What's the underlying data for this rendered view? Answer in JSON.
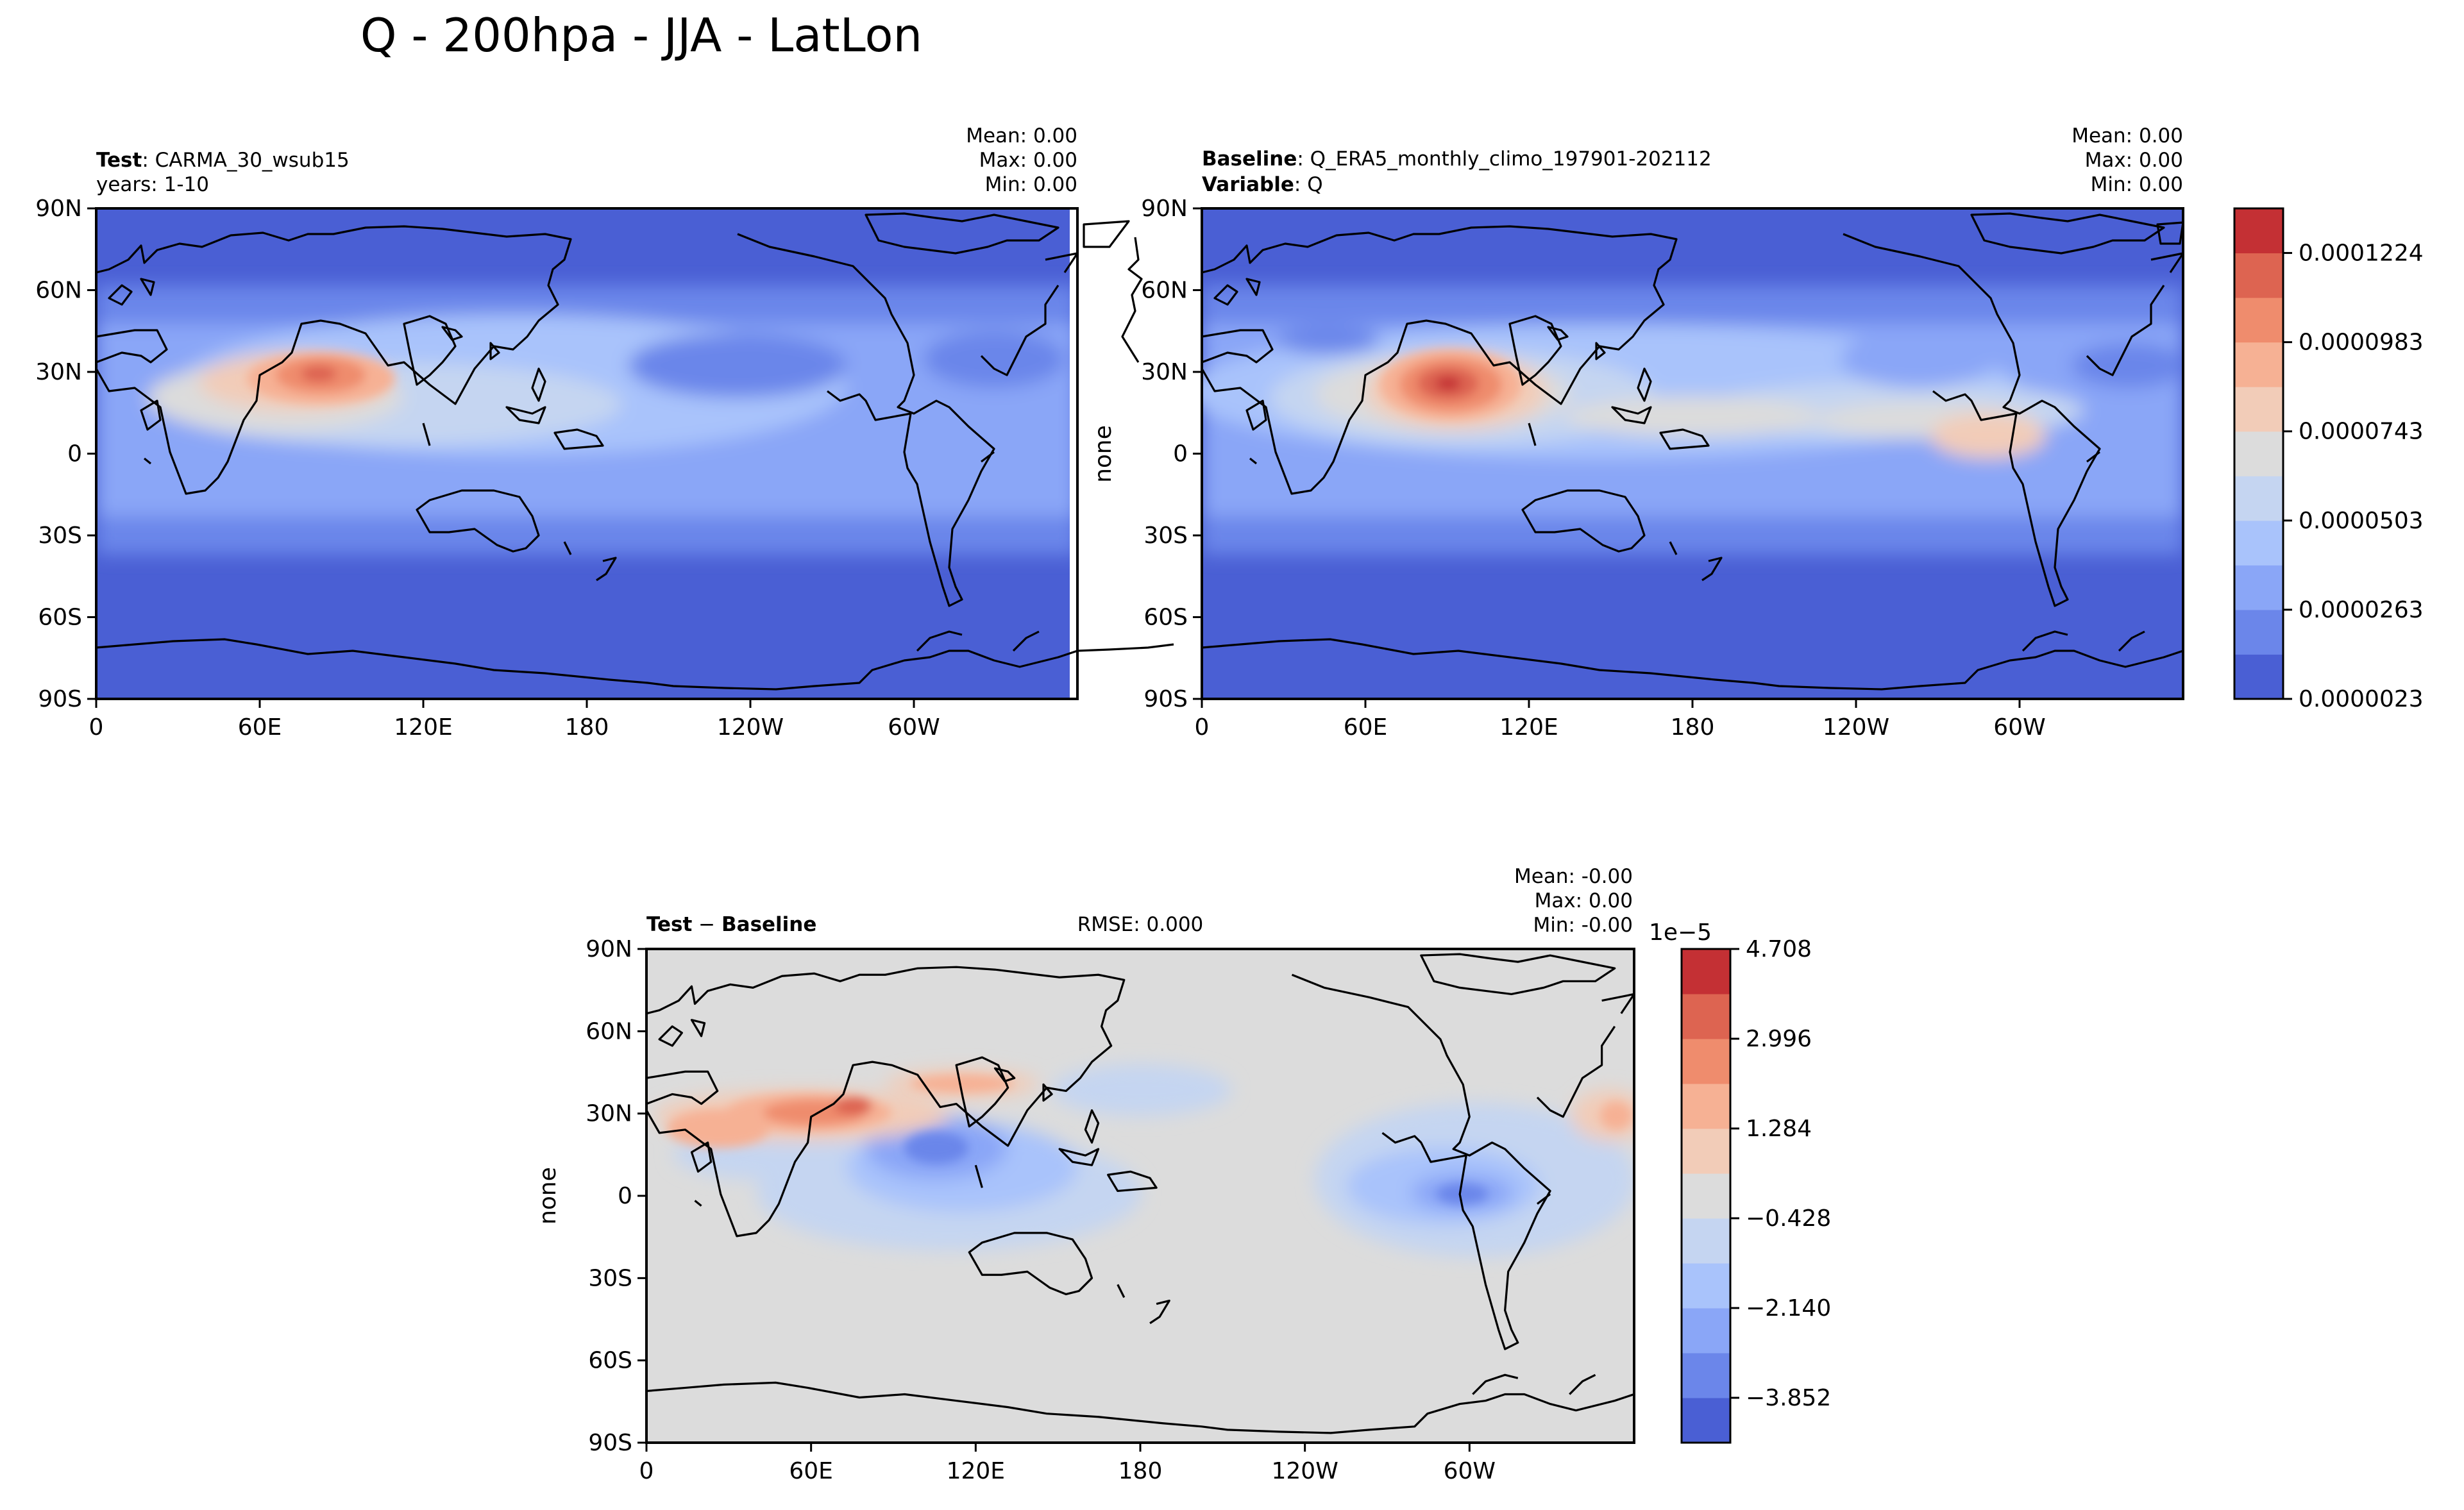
{
  "figure": {
    "suptitle": "Q - 200hpa - JJA - LatLon"
  },
  "colors": {
    "ocean_low": "#4a5fd4",
    "levels_main": [
      "#4a5fd4",
      "#6b86ea",
      "#8aa6f7",
      "#a9c3fb",
      "#c5d5f1",
      "#dcdcdc",
      "#f2ccb8",
      "#f6b194",
      "#ef8c6d",
      "#dd6451",
      "#c43034"
    ],
    "levels_diff": [
      "#4a5fd4",
      "#6b86ea",
      "#8aa6f7",
      "#a9c3fb",
      "#c5d5f1",
      "#dcdcdc",
      "#f2ccb8",
      "#f6b194",
      "#ef8c6d",
      "#dd6451",
      "#c43034"
    ],
    "coast": "#000000"
  },
  "chart_data": [
    {
      "type": "heatmap",
      "panel": "test",
      "title_bold": "Test",
      "title_rest": ": CARMA_30_wsub15",
      "subtitle": "years: 1-10",
      "stats": {
        "mean": "Mean:  0.00",
        "max": "Max:  0.00",
        "min": "Min:  0.00"
      },
      "ylabel": "",
      "xticks": [
        "0",
        "60E",
        "120E",
        "180",
        "120W",
        "60W"
      ],
      "yticks": [
        "90N",
        "60N",
        "30N",
        "0",
        "30S",
        "60S",
        "90S"
      ],
      "xlim": [
        0,
        360
      ],
      "ylim": [
        -90,
        90
      ],
      "features": [
        {
          "name": "tibetan-max",
          "lon": 80,
          "lat": 28,
          "level": 9
        },
        {
          "name": "tropical-band",
          "lat": 15,
          "level": 3
        }
      ]
    },
    {
      "type": "heatmap",
      "panel": "baseline",
      "title_bold": "Baseline",
      "title_rest": ": Q_ERA5_monthly_climo_197901-202112",
      "subtitle_bold": "Variable",
      "subtitle_rest": ": Q",
      "stats": {
        "mean": "Mean:  0.00",
        "max": "Max:  0.00",
        "min": "Min:  0.00"
      },
      "ylabel": "none",
      "xticks": [
        "0",
        "60E",
        "120E",
        "180",
        "120W",
        "60W"
      ],
      "yticks": [
        "90N",
        "60N",
        "30N",
        "0",
        "30S",
        "60S",
        "90S"
      ],
      "xlim": [
        0,
        360
      ],
      "ylim": [
        -90,
        90
      ],
      "colorbar": {
        "ticks": [
          "0.0000023",
          "0.0000263",
          "0.0000503",
          "0.0000743",
          "0.0000983",
          "0.0001224"
        ]
      }
    },
    {
      "type": "heatmap",
      "panel": "difference",
      "title_bold_a": "Test",
      "title_op": " − ",
      "title_bold_b": "Baseline",
      "rmse": "RMSE: 0.000",
      "stats": {
        "mean": "Mean: -0.00",
        "max": "Max:  0.00",
        "min": "Min: -0.00"
      },
      "ylabel": "none",
      "xticks": [
        "0",
        "60E",
        "120E",
        "180",
        "120W",
        "60W"
      ],
      "yticks": [
        "90N",
        "60N",
        "30N",
        "0",
        "30S",
        "60S",
        "90S"
      ],
      "xlim": [
        0,
        360
      ],
      "ylim": [
        -90,
        90
      ],
      "colorbar": {
        "exponent": "1e−5",
        "ticks": [
          "4.708",
          "2.996",
          "1.284",
          "−0.428",
          "−2.140",
          "−3.852"
        ]
      }
    }
  ]
}
